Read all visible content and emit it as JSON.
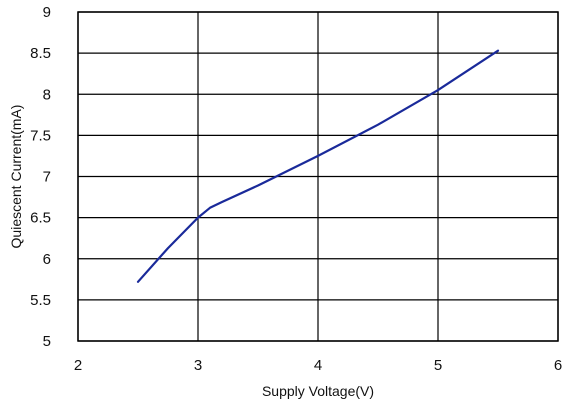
{
  "chart_data": {
    "type": "line",
    "xlabel": "Supply Voltage(V)",
    "ylabel": "Quiescent Current(mA)",
    "xlim": [
      2,
      6
    ],
    "ylim": [
      5,
      9
    ],
    "xticks": [
      2,
      3,
      4,
      5,
      6
    ],
    "xtick_labels": [
      "2",
      "3",
      "4",
      "5",
      "6"
    ],
    "yticks": [
      5,
      5.5,
      6,
      6.5,
      7,
      7.5,
      8,
      8.5,
      9
    ],
    "ytick_labels": [
      "5",
      "5.5",
      "6",
      "6.5",
      "7",
      "7.5",
      "8",
      "8.5",
      "9"
    ],
    "grid": true,
    "legend": false,
    "series": [
      {
        "color": "#1a2a9a",
        "x": [
          2.5,
          2.75,
          3.0,
          3.1,
          3.2,
          3.5,
          4.0,
          4.5,
          5.0,
          5.5
        ],
        "y": [
          5.72,
          6.13,
          6.5,
          6.62,
          6.69,
          6.89,
          7.25,
          7.63,
          8.05,
          8.53
        ]
      }
    ]
  }
}
